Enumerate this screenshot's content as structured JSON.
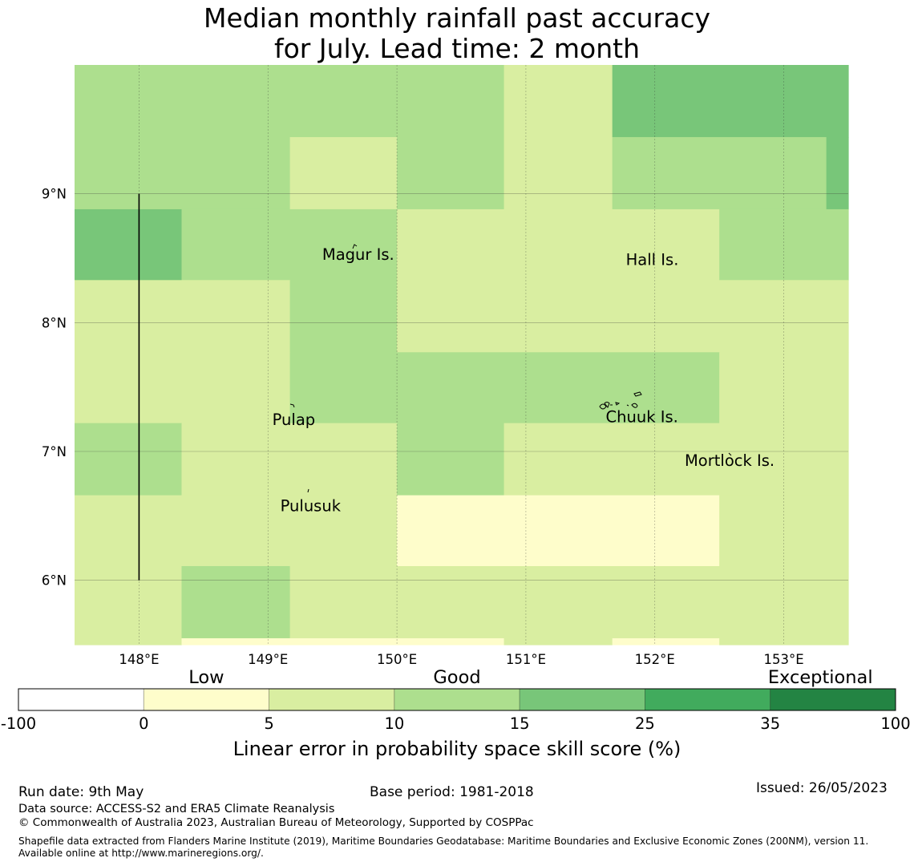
{
  "title": {
    "line1": "Median monthly rainfall past accuracy",
    "line2": "for July. Lead time: 2 month"
  },
  "map": {
    "lon_range": [
      147.5,
      153.5
    ],
    "lat_range": [
      5.5,
      10.0
    ],
    "lon_ticks": [
      {
        "value": 148,
        "label": "148°E"
      },
      {
        "value": 149,
        "label": "149°E"
      },
      {
        "value": 150,
        "label": "150°E"
      },
      {
        "value": 151,
        "label": "151°E"
      },
      {
        "value": 152,
        "label": "152°E"
      },
      {
        "value": 153,
        "label": "153°E"
      }
    ],
    "lat_ticks": [
      {
        "value": 6,
        "label": "6°N"
      },
      {
        "value": 7,
        "label": "7°N"
      },
      {
        "value": 8,
        "label": "8°N"
      },
      {
        "value": 9,
        "label": "9°N"
      }
    ],
    "grid": true,
    "grid_rows": [
      {
        "lat_top": 10.0,
        "lat_bottom": 9.44,
        "cells": [
          {
            "lon0": 147.5,
            "lon1": 150.83,
            "level": 3
          },
          {
            "lon0": 150.83,
            "lon1": 151.67,
            "level": 2
          },
          {
            "lon0": 151.67,
            "lon1": 153.5,
            "level": 4
          }
        ]
      },
      {
        "lat_top": 9.44,
        "lat_bottom": 8.88,
        "cells": [
          {
            "lon0": 147.5,
            "lon1": 149.17,
            "level": 3
          },
          {
            "lon0": 149.17,
            "lon1": 150.0,
            "level": 2
          },
          {
            "lon0": 150.0,
            "lon1": 150.83,
            "level": 3
          },
          {
            "lon0": 150.83,
            "lon1": 151.67,
            "level": 2
          },
          {
            "lon0": 151.67,
            "lon1": 153.33,
            "level": 3
          },
          {
            "lon0": 153.33,
            "lon1": 153.5,
            "level": 4
          }
        ]
      },
      {
        "lat_top": 8.88,
        "lat_bottom": 8.33,
        "cells": [
          {
            "lon0": 147.5,
            "lon1": 148.33,
            "level": 4
          },
          {
            "lon0": 148.33,
            "lon1": 150.0,
            "level": 3
          },
          {
            "lon0": 150.0,
            "lon1": 152.5,
            "level": 2
          },
          {
            "lon0": 152.5,
            "lon1": 153.5,
            "level": 3
          }
        ]
      },
      {
        "lat_top": 8.33,
        "lat_bottom": 7.77,
        "cells": [
          {
            "lon0": 147.5,
            "lon1": 149.17,
            "level": 2
          },
          {
            "lon0": 149.17,
            "lon1": 150.0,
            "level": 3
          },
          {
            "lon0": 150.0,
            "lon1": 153.5,
            "level": 2
          }
        ]
      },
      {
        "lat_top": 7.77,
        "lat_bottom": 7.22,
        "cells": [
          {
            "lon0": 147.5,
            "lon1": 149.17,
            "level": 2
          },
          {
            "lon0": 149.17,
            "lon1": 152.5,
            "level": 3
          },
          {
            "lon0": 152.5,
            "lon1": 153.5,
            "level": 2
          }
        ]
      },
      {
        "lat_top": 7.22,
        "lat_bottom": 6.66,
        "cells": [
          {
            "lon0": 147.5,
            "lon1": 148.33,
            "level": 3
          },
          {
            "lon0": 148.33,
            "lon1": 150.0,
            "level": 2
          },
          {
            "lon0": 150.0,
            "lon1": 150.83,
            "level": 3
          },
          {
            "lon0": 150.83,
            "lon1": 153.5,
            "level": 2
          }
        ]
      },
      {
        "lat_top": 6.66,
        "lat_bottom": 6.11,
        "cells": [
          {
            "lon0": 147.5,
            "lon1": 150.0,
            "level": 2
          },
          {
            "lon0": 150.0,
            "lon1": 152.5,
            "level": 1
          },
          {
            "lon0": 152.5,
            "lon1": 153.5,
            "level": 2
          }
        ]
      },
      {
        "lat_top": 6.11,
        "lat_bottom": 5.55,
        "cells": [
          {
            "lon0": 147.5,
            "lon1": 148.33,
            "level": 2
          },
          {
            "lon0": 148.33,
            "lon1": 149.17,
            "level": 3
          },
          {
            "lon0": 149.17,
            "lon1": 153.5,
            "level": 2
          }
        ]
      },
      {
        "lat_top": 5.55,
        "lat_bottom": 5.5,
        "cells": [
          {
            "lon0": 147.5,
            "lon1": 148.33,
            "level": 2
          },
          {
            "lon0": 148.33,
            "lon1": 150.83,
            "level": 1
          },
          {
            "lon0": 150.83,
            "lon1": 151.67,
            "level": 2
          },
          {
            "lon0": 151.67,
            "lon1": 152.5,
            "level": 1
          },
          {
            "lon0": 152.5,
            "lon1": 153.5,
            "level": 2
          }
        ]
      }
    ],
    "boundary_line": {
      "lon": 148.0,
      "lat_from": 6.0,
      "lat_to": 9.0
    },
    "places": [
      {
        "name": "Magur Is.",
        "lon": 149.7,
        "lat": 8.53
      },
      {
        "name": "Hall Is.",
        "lon": 151.98,
        "lat": 8.49
      },
      {
        "name": "Pulap",
        "lon": 149.2,
        "lat": 7.25
      },
      {
        "name": "Chuuk Is.",
        "lon": 151.9,
        "lat": 7.27
      },
      {
        "name": "Mortlock Is.",
        "lon": 152.58,
        "lat": 6.93
      },
      {
        "name": "Pulusuk",
        "lon": 149.33,
        "lat": 6.58
      }
    ]
  },
  "colorbar": {
    "colors": [
      "#ffffff",
      "#fefdcb",
      "#d9eea1",
      "#addf8e",
      "#78c679",
      "#41ab5d",
      "#238443"
    ],
    "boundaries": [
      "-100",
      "0",
      "5",
      "10",
      "15",
      "25",
      "35",
      "100"
    ],
    "category_labels": [
      {
        "label": "Low",
        "at_boundary": 1.5
      },
      {
        "label": "Good",
        "at_boundary": 3.5
      },
      {
        "label": "Exceptional",
        "at_boundary": 6.4
      }
    ],
    "title": "Linear error in probability space skill score (%)"
  },
  "footer": {
    "run_date": "Run date: 9th May",
    "base_period": "Base period: 1981-2018",
    "issued": "Issued: 26/05/2023",
    "data_source": "Data source: ACCESS-S2 and ERA5 Climate Reanalysis",
    "copyright": "© Commonwealth of Australia 2023, Australian Bureau of Meteorology, Supported by COSPPac",
    "shapefile": "Shapefile data extracted from Flanders Marine Institute (2019), Maritime Boundaries Geodatabase: Maritime Boundaries and Exclusive Economic Zones (200NM), version 11. Available online at http://www.marineregions.org/."
  }
}
